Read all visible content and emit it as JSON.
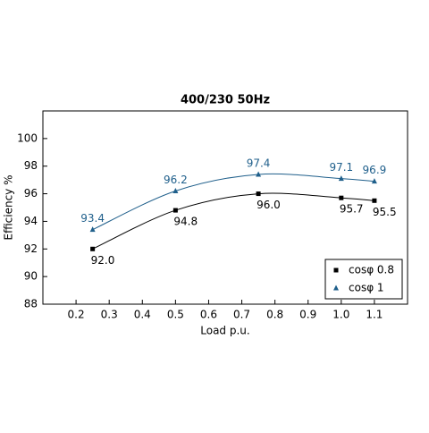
{
  "chart_data": {
    "type": "line",
    "title": "400/230 50Hz",
    "x_label": "Load p.u.",
    "y_label": "Efficiency %",
    "xlim": [
      0.1,
      1.2
    ],
    "ylim": [
      88,
      102
    ],
    "xticks": [
      0.2,
      0.3,
      0.4,
      0.5,
      0.6,
      0.7,
      0.8,
      0.9,
      {
        "value": 1,
        "label": "1.0"
      },
      1.1
    ],
    "yticks": [
      88,
      90,
      92,
      94,
      96,
      98,
      100
    ],
    "legend": "lower right",
    "series": [
      {
        "name": "cosφ 0.8",
        "color": "#000000",
        "marker": "square",
        "x": [
          0.25,
          0.5,
          0.75,
          1.0,
          1.1
        ],
        "values": [
          92.0,
          94.8,
          96.0,
          95.7,
          95.5
        ],
        "value_labels": [
          "92.0",
          "94.8",
          "96.0",
          "95.7",
          "95.5"
        ]
      },
      {
        "name": "cosφ 1",
        "color": "#1f5f8b",
        "marker": "triangle",
        "x": [
          0.25,
          0.5,
          0.75,
          1.0,
          1.1
        ],
        "values": [
          93.4,
          96.2,
          97.4,
          97.1,
          96.9
        ],
        "value_labels": [
          "93.4",
          "96.2",
          "97.4",
          "97.1",
          "96.9"
        ]
      }
    ]
  }
}
